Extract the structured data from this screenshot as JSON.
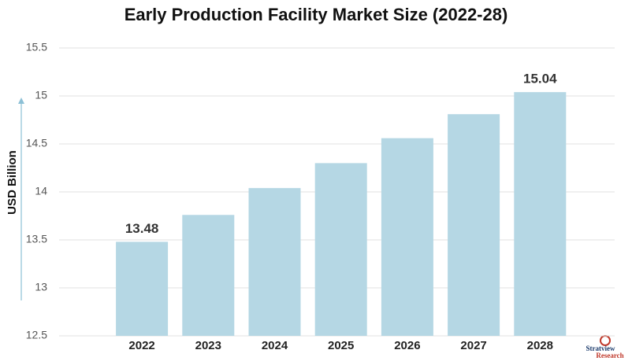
{
  "chart_data": {
    "type": "bar",
    "title": "Early Production Facility Market Size (2022-28)",
    "y_label": "USD Billion",
    "categories": [
      "2022",
      "2023",
      "2024",
      "2025",
      "2026",
      "2027",
      "2028"
    ],
    "values": [
      13.48,
      13.76,
      14.04,
      14.3,
      14.56,
      14.81,
      15.04
    ],
    "value_labels": [
      "13.48",
      null,
      null,
      null,
      null,
      null,
      "15.04"
    ],
    "color": "#b5d7e4",
    "ylim": [
      12.5,
      15.5
    ],
    "yticks": [
      12.5,
      13,
      13.5,
      14,
      14.5,
      15,
      15.5
    ],
    "grid": true,
    "watermark": [
      "Stratview",
      "Research"
    ]
  }
}
